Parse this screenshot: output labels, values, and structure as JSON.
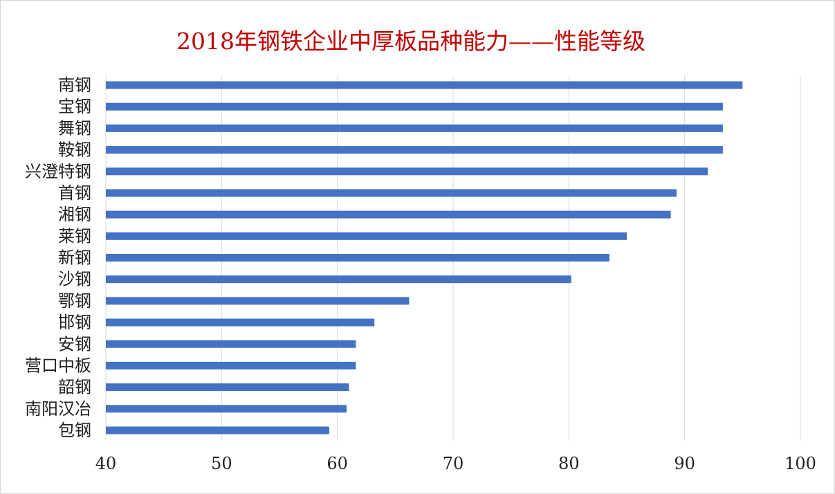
{
  "chart_data": {
    "type": "bar",
    "orientation": "horizontal",
    "title": "2018年钢铁企业中厚板品种能力——性能等级",
    "xlabel": "",
    "ylabel": "",
    "xlim": [
      40,
      100
    ],
    "x_ticks": [
      40,
      50,
      60,
      70,
      80,
      90,
      100
    ],
    "grid": true,
    "legend": "none",
    "bar_color": "#4472c4",
    "title_color": "#c00000",
    "categories": [
      "南钢",
      "宝钢",
      "舞钢",
      "鞍钢",
      "兴澄特钢",
      "首钢",
      "湘钢",
      "莱钢",
      "新钢",
      "沙钢",
      "鄂钢",
      "邯钢",
      "安钢",
      "营口中板",
      "韶钢",
      "南阳汉冶",
      "包钢"
    ],
    "values": [
      95.0,
      93.3,
      93.3,
      93.3,
      92.0,
      89.3,
      88.8,
      85.0,
      83.5,
      80.2,
      66.2,
      63.2,
      61.6,
      61.6,
      61.0,
      60.8,
      59.3
    ]
  }
}
